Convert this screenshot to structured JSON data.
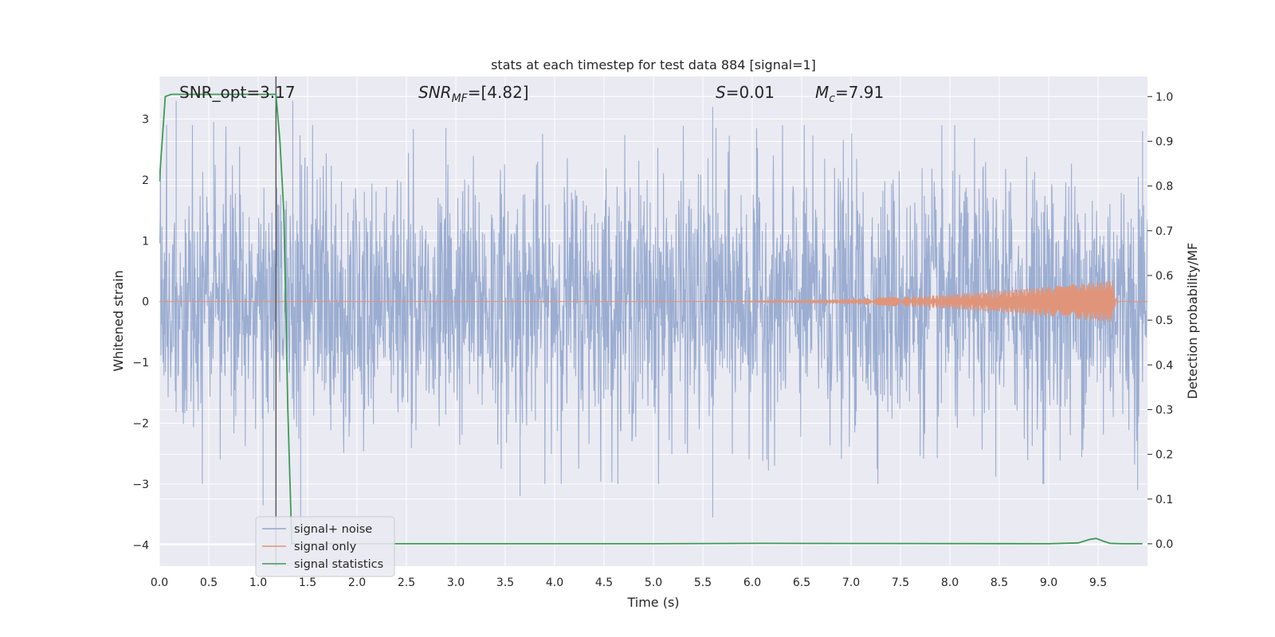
{
  "chart_data": {
    "type": "line",
    "title": "stats at each timestep for test data 884 [signal=1]",
    "xlabel": "Time (s)",
    "ylabel": "Whitened strain",
    "y2label": "Detection probability/MF",
    "xlim": [
      0.0,
      10.0
    ],
    "ylim": [
      -4.35,
      3.7
    ],
    "y2lim": [
      -0.05,
      1.045
    ],
    "x_ticks": [
      0.0,
      0.5,
      1.0,
      1.5,
      2.0,
      2.5,
      3.0,
      3.5,
      4.0,
      4.5,
      5.0,
      5.5,
      6.0,
      6.5,
      7.0,
      7.5,
      8.0,
      8.5,
      9.0,
      9.5
    ],
    "x_tick_labels": [
      "0.0",
      "0.5",
      "1.0",
      "1.5",
      "2.0",
      "2.5",
      "3.0",
      "3.5",
      "4.0",
      "4.5",
      "5.0",
      "5.5",
      "6.0",
      "6.5",
      "7.0",
      "7.5",
      "8.0",
      "8.5",
      "9.0",
      "9.5"
    ],
    "y_ticks": [
      3,
      2,
      1,
      0,
      -1,
      -2,
      -3,
      -4
    ],
    "y_tick_labels": [
      "3",
      "2",
      "1",
      "0",
      "−1",
      "−2",
      "−3",
      "−4"
    ],
    "y2_ticks": [
      1.0,
      0.9,
      0.8,
      0.7,
      0.6,
      0.5,
      0.4,
      0.3,
      0.2,
      0.1,
      0.0
    ],
    "y2_tick_labels": [
      "1.0",
      "0.9",
      "0.8",
      "0.7",
      "0.6",
      "0.5",
      "0.4",
      "0.3",
      "0.2",
      "0.1",
      "0.0"
    ],
    "grid": true,
    "legend_position": "lower-left",
    "vline_x": 1.18,
    "annotations": {
      "snr_opt": "SNR_opt=3.17",
      "snr_mf_label": "SNR",
      "snr_mf_sub": "MF",
      "snr_mf_value": "=[4.82]",
      "s_label": "S",
      "s_value": "=0.01",
      "mc_label": "M",
      "mc_sub": "c",
      "mc_value": "=7.91"
    },
    "series": [
      {
        "name": "signal+ noise",
        "color": "#92a6cd",
        "axis": "left",
        "amplitude_band": [
          -1.5,
          1.5
        ],
        "notable_peaks": [
          {
            "x": 0.17,
            "y": 3.3
          },
          {
            "x": 0.55,
            "y": 2.95
          },
          {
            "x": 1.05,
            "y": -3.35
          },
          {
            "x": 1.35,
            "y": 3.3
          },
          {
            "x": 1.43,
            "y": -3.7
          },
          {
            "x": 2.9,
            "y": 2.85
          },
          {
            "x": 3.65,
            "y": -3.2
          },
          {
            "x": 5.6,
            "y": 3.2
          },
          {
            "x": 5.6,
            "y": -3.55
          },
          {
            "x": 8.95,
            "y": -3.0
          },
          {
            "x": 9.9,
            "y": -3.1
          },
          {
            "x": 9.95,
            "y": 2.8
          }
        ]
      },
      {
        "name": "signal only",
        "color": "#e0957a",
        "axis": "left",
        "chirp_start": 5.3,
        "chirp_peak_time": 9.65,
        "chirp_peak_amplitude": 0.35
      },
      {
        "name": "signal statistics",
        "color": "#3d9a55",
        "axis": "right",
        "x": [
          0.0,
          0.06,
          0.12,
          0.5,
          1.0,
          1.18,
          1.22,
          1.26,
          1.3,
          1.34,
          1.4,
          5.0,
          6.1,
          9.0,
          9.3,
          9.42,
          9.48,
          9.55,
          9.62,
          9.75,
          9.95
        ],
        "y": [
          0.81,
          1.0,
          1.005,
          1.005,
          1.005,
          1.005,
          0.9,
          0.74,
          0.3,
          0.0,
          0.0,
          0.0,
          0.001,
          0.0,
          0.002,
          0.01,
          0.012,
          0.006,
          0.001,
          0.0,
          0.0
        ]
      }
    ]
  }
}
